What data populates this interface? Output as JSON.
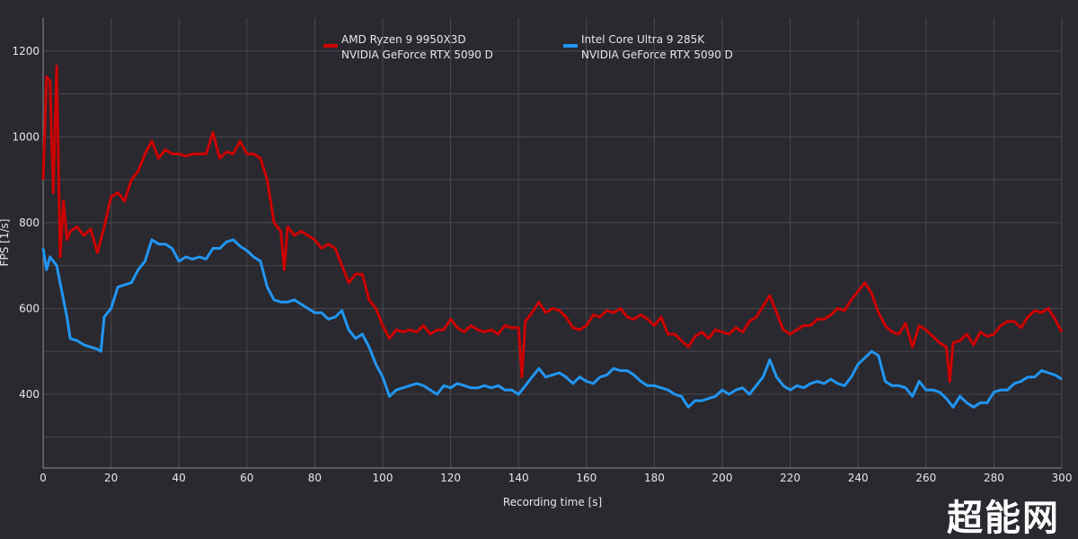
{
  "chart_data": {
    "type": "line",
    "title": "",
    "xlabel": "Recording time [s]",
    "ylabel": "FPS [1/s]",
    "xlim": [
      0,
      300
    ],
    "ylim": [
      228,
      1277
    ],
    "xticks": [
      0,
      20,
      40,
      60,
      80,
      100,
      120,
      140,
      160,
      180,
      200,
      220,
      240,
      260,
      280,
      300
    ],
    "yticks": [
      400,
      600,
      800,
      1000,
      1200
    ],
    "grid": true,
    "legend_position": "top-center",
    "series": [
      {
        "name": "AMD Ryzen 9 9950X3D",
        "name2": "NVIDIA GeForce RTX 5090 D",
        "color": "#cc0000",
        "points": [
          [
            0,
            900
          ],
          [
            1,
            1140
          ],
          [
            2,
            1130
          ],
          [
            3,
            870
          ],
          [
            4,
            1165
          ],
          [
            5,
            720
          ],
          [
            6,
            850
          ],
          [
            7,
            760
          ],
          [
            8,
            780
          ],
          [
            10,
            790
          ],
          [
            12,
            770
          ],
          [
            14,
            785
          ],
          [
            16,
            730
          ],
          [
            18,
            790
          ],
          [
            20,
            860
          ],
          [
            22,
            870
          ],
          [
            24,
            850
          ],
          [
            26,
            900
          ],
          [
            28,
            920
          ],
          [
            30,
            960
          ],
          [
            32,
            990
          ],
          [
            34,
            950
          ],
          [
            36,
            970
          ],
          [
            38,
            960
          ],
          [
            40,
            960
          ],
          [
            42,
            955
          ],
          [
            44,
            960
          ],
          [
            46,
            960
          ],
          [
            48,
            960
          ],
          [
            50,
            1010
          ],
          [
            52,
            950
          ],
          [
            54,
            965
          ],
          [
            56,
            960
          ],
          [
            58,
            990
          ],
          [
            60,
            960
          ],
          [
            62,
            960
          ],
          [
            64,
            950
          ],
          [
            66,
            900
          ],
          [
            68,
            800
          ],
          [
            70,
            780
          ],
          [
            71,
            690
          ],
          [
            72,
            790
          ],
          [
            74,
            770
          ],
          [
            76,
            780
          ],
          [
            78,
            770
          ],
          [
            80,
            760
          ],
          [
            82,
            740
          ],
          [
            84,
            750
          ],
          [
            86,
            740
          ],
          [
            88,
            700
          ],
          [
            90,
            660
          ],
          [
            92,
            680
          ],
          [
            94,
            680
          ],
          [
            96,
            620
          ],
          [
            98,
            600
          ],
          [
            100,
            560
          ],
          [
            102,
            530
          ],
          [
            104,
            550
          ],
          [
            106,
            545
          ],
          [
            108,
            550
          ],
          [
            110,
            545
          ],
          [
            112,
            560
          ],
          [
            114,
            540
          ],
          [
            116,
            550
          ],
          [
            118,
            550
          ],
          [
            120,
            575
          ],
          [
            122,
            555
          ],
          [
            124,
            545
          ],
          [
            126,
            560
          ],
          [
            128,
            550
          ],
          [
            130,
            545
          ],
          [
            132,
            550
          ],
          [
            134,
            540
          ],
          [
            136,
            560
          ],
          [
            138,
            555
          ],
          [
            140,
            555
          ],
          [
            141,
            440
          ],
          [
            142,
            570
          ],
          [
            144,
            590
          ],
          [
            146,
            615
          ],
          [
            148,
            590
          ],
          [
            150,
            600
          ],
          [
            152,
            595
          ],
          [
            154,
            580
          ],
          [
            156,
            555
          ],
          [
            158,
            550
          ],
          [
            160,
            560
          ],
          [
            162,
            585
          ],
          [
            164,
            580
          ],
          [
            166,
            595
          ],
          [
            168,
            590
          ],
          [
            170,
            600
          ],
          [
            172,
            580
          ],
          [
            174,
            575
          ],
          [
            176,
            585
          ],
          [
            178,
            575
          ],
          [
            180,
            560
          ],
          [
            182,
            580
          ],
          [
            184,
            540
          ],
          [
            186,
            540
          ],
          [
            188,
            525
          ],
          [
            190,
            510
          ],
          [
            192,
            535
          ],
          [
            194,
            545
          ],
          [
            196,
            530
          ],
          [
            198,
            550
          ],
          [
            200,
            545
          ],
          [
            202,
            540
          ],
          [
            204,
            555
          ],
          [
            206,
            545
          ],
          [
            208,
            570
          ],
          [
            210,
            580
          ],
          [
            212,
            605
          ],
          [
            214,
            630
          ],
          [
            216,
            590
          ],
          [
            218,
            550
          ],
          [
            220,
            540
          ],
          [
            222,
            550
          ],
          [
            224,
            560
          ],
          [
            226,
            560
          ],
          [
            228,
            575
          ],
          [
            230,
            575
          ],
          [
            232,
            585
          ],
          [
            234,
            600
          ],
          [
            236,
            595
          ],
          [
            238,
            620
          ],
          [
            240,
            640
          ],
          [
            242,
            660
          ],
          [
            244,
            635
          ],
          [
            246,
            590
          ],
          [
            248,
            560
          ],
          [
            250,
            545
          ],
          [
            252,
            540
          ],
          [
            254,
            565
          ],
          [
            256,
            510
          ],
          [
            258,
            560
          ],
          [
            260,
            550
          ],
          [
            262,
            535
          ],
          [
            264,
            520
          ],
          [
            266,
            510
          ],
          [
            267,
            430
          ],
          [
            268,
            520
          ],
          [
            270,
            525
          ],
          [
            272,
            540
          ],
          [
            274,
            515
          ],
          [
            276,
            545
          ],
          [
            278,
            535
          ],
          [
            280,
            540
          ],
          [
            282,
            560
          ],
          [
            284,
            570
          ],
          [
            286,
            570
          ],
          [
            288,
            555
          ],
          [
            290,
            580
          ],
          [
            292,
            595
          ],
          [
            294,
            590
          ],
          [
            296,
            600
          ],
          [
            298,
            575
          ],
          [
            300,
            545
          ]
        ]
      },
      {
        "name": "Intel Core Ultra 9 285K",
        "name2": "NVIDIA GeForce RTX 5090 D",
        "color": "#2196f3",
        "points": [
          [
            0,
            740
          ],
          [
            1,
            690
          ],
          [
            2,
            720
          ],
          [
            4,
            700
          ],
          [
            6,
            620
          ],
          [
            7,
            580
          ],
          [
            8,
            530
          ],
          [
            10,
            525
          ],
          [
            12,
            515
          ],
          [
            14,
            510
          ],
          [
            16,
            505
          ],
          [
            17,
            500
          ],
          [
            18,
            580
          ],
          [
            20,
            600
          ],
          [
            22,
            650
          ],
          [
            24,
            655
          ],
          [
            26,
            660
          ],
          [
            28,
            690
          ],
          [
            30,
            710
          ],
          [
            32,
            760
          ],
          [
            34,
            750
          ],
          [
            36,
            750
          ],
          [
            38,
            740
          ],
          [
            40,
            710
          ],
          [
            42,
            720
          ],
          [
            44,
            715
          ],
          [
            46,
            720
          ],
          [
            48,
            715
          ],
          [
            50,
            740
          ],
          [
            52,
            740
          ],
          [
            54,
            755
          ],
          [
            56,
            760
          ],
          [
            58,
            745
          ],
          [
            60,
            735
          ],
          [
            62,
            720
          ],
          [
            64,
            710
          ],
          [
            66,
            650
          ],
          [
            68,
            620
          ],
          [
            70,
            615
          ],
          [
            72,
            615
          ],
          [
            74,
            620
          ],
          [
            76,
            610
          ],
          [
            78,
            600
          ],
          [
            80,
            590
          ],
          [
            82,
            590
          ],
          [
            84,
            575
          ],
          [
            86,
            580
          ],
          [
            88,
            595
          ],
          [
            90,
            550
          ],
          [
            92,
            530
          ],
          [
            94,
            540
          ],
          [
            96,
            510
          ],
          [
            98,
            470
          ],
          [
            100,
            440
          ],
          [
            102,
            395
          ],
          [
            104,
            410
          ],
          [
            106,
            415
          ],
          [
            108,
            420
          ],
          [
            110,
            425
          ],
          [
            112,
            420
          ],
          [
            114,
            410
          ],
          [
            116,
            400
          ],
          [
            118,
            420
          ],
          [
            120,
            415
          ],
          [
            122,
            425
          ],
          [
            124,
            420
          ],
          [
            126,
            415
          ],
          [
            128,
            415
          ],
          [
            130,
            420
          ],
          [
            132,
            415
          ],
          [
            134,
            420
          ],
          [
            136,
            410
          ],
          [
            138,
            410
          ],
          [
            140,
            400
          ],
          [
            142,
            420
          ],
          [
            144,
            440
          ],
          [
            146,
            460
          ],
          [
            148,
            440
          ],
          [
            150,
            445
          ],
          [
            152,
            450
          ],
          [
            154,
            440
          ],
          [
            156,
            425
          ],
          [
            158,
            440
          ],
          [
            160,
            430
          ],
          [
            162,
            425
          ],
          [
            164,
            440
          ],
          [
            166,
            445
          ],
          [
            168,
            460
          ],
          [
            170,
            455
          ],
          [
            172,
            455
          ],
          [
            174,
            445
          ],
          [
            176,
            430
          ],
          [
            178,
            420
          ],
          [
            180,
            420
          ],
          [
            182,
            415
          ],
          [
            184,
            410
          ],
          [
            186,
            400
          ],
          [
            188,
            395
          ],
          [
            190,
            370
          ],
          [
            192,
            385
          ],
          [
            194,
            385
          ],
          [
            196,
            390
          ],
          [
            198,
            395
          ],
          [
            200,
            410
          ],
          [
            202,
            400
          ],
          [
            204,
            410
          ],
          [
            206,
            415
          ],
          [
            208,
            400
          ],
          [
            210,
            420
          ],
          [
            212,
            440
          ],
          [
            214,
            480
          ],
          [
            216,
            440
          ],
          [
            218,
            420
          ],
          [
            220,
            410
          ],
          [
            222,
            420
          ],
          [
            224,
            415
          ],
          [
            226,
            425
          ],
          [
            228,
            430
          ],
          [
            230,
            425
          ],
          [
            232,
            435
          ],
          [
            234,
            425
          ],
          [
            236,
            420
          ],
          [
            238,
            440
          ],
          [
            240,
            470
          ],
          [
            242,
            485
          ],
          [
            244,
            500
          ],
          [
            246,
            490
          ],
          [
            248,
            430
          ],
          [
            250,
            420
          ],
          [
            252,
            420
          ],
          [
            254,
            415
          ],
          [
            256,
            395
          ],
          [
            258,
            430
          ],
          [
            260,
            410
          ],
          [
            262,
            410
          ],
          [
            264,
            405
          ],
          [
            266,
            390
          ],
          [
            268,
            370
          ],
          [
            270,
            395
          ],
          [
            272,
            380
          ],
          [
            274,
            370
          ],
          [
            276,
            380
          ],
          [
            278,
            380
          ],
          [
            280,
            405
          ],
          [
            282,
            410
          ],
          [
            284,
            410
          ],
          [
            286,
            425
          ],
          [
            288,
            430
          ],
          [
            290,
            440
          ],
          [
            292,
            440
          ],
          [
            294,
            455
          ],
          [
            296,
            450
          ],
          [
            298,
            445
          ],
          [
            300,
            435
          ]
        ]
      }
    ]
  },
  "watermark": "超能网"
}
